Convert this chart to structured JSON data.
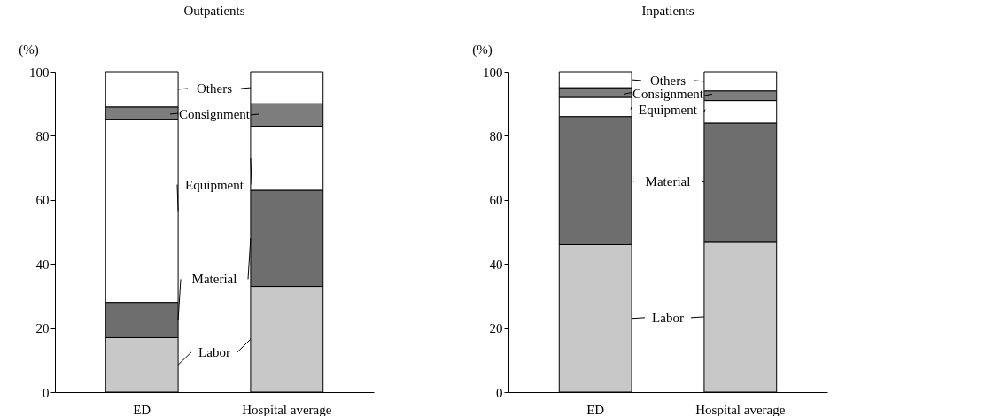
{
  "chart_data": [
    {
      "type": "bar",
      "title": "Outpatients",
      "ylabel": "(%)",
      "categories": [
        "ED",
        "Hospital average"
      ],
      "stacked": true,
      "ylim": [
        0,
        100
      ],
      "yticks": [
        0,
        20,
        40,
        60,
        80,
        100
      ],
      "grid": false,
      "legend": "center",
      "series": [
        {
          "name": "Labor",
          "color": "#c8c8c8",
          "values": [
            17,
            33
          ]
        },
        {
          "name": "Material",
          "color": "#6e6e6e",
          "values": [
            11,
            30
          ]
        },
        {
          "name": "Equipment",
          "color": "#ffffff",
          "values": [
            57,
            20
          ]
        },
        {
          "name": "Consignment",
          "color": "#7d7d7d",
          "values": [
            4,
            7
          ]
        },
        {
          "name": "Others",
          "color": "#ffffff",
          "values": [
            11,
            10
          ]
        }
      ]
    },
    {
      "type": "bar",
      "title": "Inpatients",
      "ylabel": "(%)",
      "categories": [
        "ED",
        "Hospital average"
      ],
      "stacked": true,
      "ylim": [
        0,
        100
      ],
      "yticks": [
        0,
        20,
        40,
        60,
        80,
        100
      ],
      "grid": false,
      "legend": "center",
      "series": [
        {
          "name": "Labor",
          "color": "#c8c8c8",
          "values": [
            46,
            47
          ]
        },
        {
          "name": "Material",
          "color": "#6e6e6e",
          "values": [
            40,
            37
          ]
        },
        {
          "name": "Equipment",
          "color": "#ffffff",
          "values": [
            6,
            7
          ]
        },
        {
          "name": "Consignment",
          "color": "#7d7d7d",
          "values": [
            3,
            3
          ]
        },
        {
          "name": "Others",
          "color": "#ffffff",
          "values": [
            5,
            6
          ]
        }
      ]
    }
  ]
}
